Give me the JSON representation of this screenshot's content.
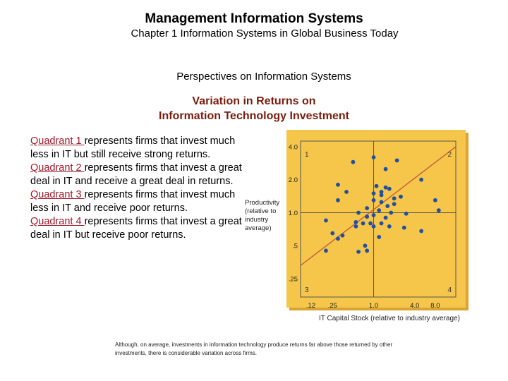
{
  "header": {
    "title": "Management Information Systems",
    "subtitle": "Chapter 1 Information Systems in Global Business Today",
    "section": "Perspectives on Information Systems",
    "heading_line1": "Variation in Returns on",
    "heading_line2": "Information Technology Investment"
  },
  "quadrants": [
    {
      "label": "Quadrant 1 ",
      "text": "represents firms that invest much less in IT but still receive strong returns."
    },
    {
      "label": "Quadrant 2 ",
      "text": "represents firms that invest a great deal in IT and receive a great deal in returns."
    },
    {
      "label": "Quadrant 3 ",
      "text": "represents firms that invest much less in IT and receive poor returns."
    },
    {
      "label": "Quadrant 4 ",
      "text": "represents firms that invest a great deal in IT but receive poor returns."
    }
  ],
  "caption": "Although, on average, investments in information technology produce returns far above those returned by other investments, there is considerable variation across firms.",
  "colors": {
    "panel": "#f5c64a",
    "dot": "#1f4fa6",
    "trend": "#c0563a",
    "heading": "#7a1c0e",
    "quadrant_label": "#a0192a"
  },
  "chart_data": {
    "type": "scatter",
    "title": "",
    "xlabel": "IT Capital Stock (relative to industry average)",
    "ylabel_lines": [
      "Productivity",
      "(relative to",
      "industry",
      "average)"
    ],
    "x_scale": "log",
    "y_scale": "log",
    "x_ticks": [
      {
        "value": 0.12,
        "label": ".12"
      },
      {
        "value": 0.25,
        "label": ".25"
      },
      {
        "value": 1.0,
        "label": "1.0"
      },
      {
        "value": 4.0,
        "label": "4.0"
      },
      {
        "value": 8.0,
        "label": "8.0"
      }
    ],
    "y_ticks": [
      {
        "value": 0.25,
        "label": ".25"
      },
      {
        "value": 0.5,
        "label": ".5"
      },
      {
        "value": 1.0,
        "label": "1.0"
      },
      {
        "value": 2.0,
        "label": "2.0"
      },
      {
        "value": 4.0,
        "label": "4.0"
      }
    ],
    "xlim": [
      0.085,
      16
    ],
    "ylim": [
      0.17,
      4.5
    ],
    "quadrant_numbers": [
      "1",
      "2",
      "3",
      "4"
    ],
    "divider_x": 1.0,
    "divider_y": 1.0,
    "trend_line": [
      [
        0.085,
        0.33
      ],
      [
        16,
        4.0
      ]
    ],
    "grid": false,
    "points": [
      [
        0.5,
        2.9
      ],
      [
        1.0,
        3.2
      ],
      [
        2.2,
        3.0
      ],
      [
        1.5,
        2.5
      ],
      [
        0.3,
        1.8
      ],
      [
        5.0,
        2.0
      ],
      [
        8.0,
        1.3
      ],
      [
        9.0,
        1.05
      ],
      [
        0.4,
        1.55
      ],
      [
        0.3,
        1.3
      ],
      [
        1.1,
        1.75
      ],
      [
        1.5,
        1.7
      ],
      [
        1.7,
        1.65
      ],
      [
        1.3,
        1.55
      ],
      [
        1.0,
        1.5
      ],
      [
        1.3,
        1.45
      ],
      [
        2.0,
        1.35
      ],
      [
        2.5,
        1.4
      ],
      [
        2.0,
        1.2
      ],
      [
        1.0,
        1.3
      ],
      [
        1.3,
        1.25
      ],
      [
        1.6,
        1.15
      ],
      [
        0.8,
        1.1
      ],
      [
        1.2,
        1.05
      ],
      [
        0.6,
        1.0
      ],
      [
        0.8,
        0.92
      ],
      [
        1.0,
        0.95
      ],
      [
        1.5,
        0.9
      ],
      [
        3.0,
        0.98
      ],
      [
        1.8,
        1.0
      ],
      [
        0.55,
        0.82
      ],
      [
        0.9,
        0.8
      ],
      [
        1.7,
        0.75
      ],
      [
        1.3,
        0.8
      ],
      [
        0.7,
        0.8
      ],
      [
        0.55,
        0.75
      ],
      [
        1.0,
        0.75
      ],
      [
        0.2,
        0.85
      ],
      [
        0.25,
        0.65
      ],
      [
        0.3,
        0.58
      ],
      [
        0.35,
        0.62
      ],
      [
        0.75,
        0.5
      ],
      [
        0.6,
        0.44
      ],
      [
        0.8,
        0.45
      ],
      [
        2.8,
        0.73
      ],
      [
        5.0,
        0.68
      ],
      [
        0.2,
        0.45
      ],
      [
        1.2,
        0.6
      ]
    ]
  }
}
